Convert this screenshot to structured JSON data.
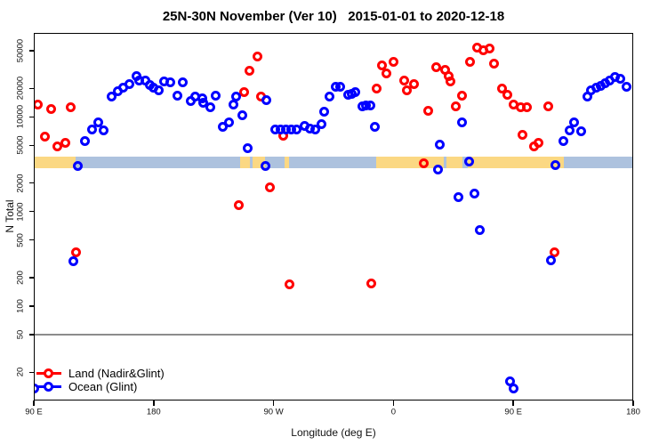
{
  "title": "25N-30N November (Ver 10)   2015-01-01 to 2020-12-18",
  "axes": {
    "xlabel": "Longitude (deg E)",
    "ylabel": "N Total"
  },
  "legend": {
    "items": [
      {
        "label": "Land (Nadir&Glint)",
        "color": "#ff0000"
      },
      {
        "label": "Ocean (Glint)",
        "color": "#0000ff"
      }
    ]
  },
  "chart_data": {
    "type": "scatter",
    "title": "25N-30N November (Ver 10)   2015-01-01 to 2020-12-18",
    "xlabel": "Longitude (deg E)",
    "ylabel": "N Total",
    "x_axis": {
      "range_deg": [
        90,
        540
      ],
      "major_ticks": [
        {
          "deg": 90,
          "label": "90 E"
        },
        {
          "deg": 180,
          "label": "180"
        },
        {
          "deg": 270,
          "label": "90 W"
        },
        {
          "deg": 360,
          "label": "0"
        },
        {
          "deg": 450,
          "label": "90 E"
        },
        {
          "deg": 540,
          "label": "180"
        }
      ]
    },
    "y_axis": {
      "scale": "log",
      "range": [
        10.06,
        78100
      ],
      "ticks": [
        20,
        50,
        100,
        200,
        500,
        1000,
        2000,
        5000,
        10000,
        20000,
        50000
      ]
    },
    "reference_line": {
      "value": 50,
      "color": "#8c8c8c"
    },
    "land_ocean_strip": {
      "n_range": [
        2840,
        3790
      ],
      "ocean_color": "#adc2de",
      "land_color": "#fbd883",
      "span_deg": [
        90,
        540
      ],
      "land_segments_deg": [
        [
          90,
          121.5
        ],
        [
          245,
          252.5
        ],
        [
          254.5,
          263.5
        ],
        [
          278.5,
          281.5
        ],
        [
          347,
          398
        ],
        [
          400,
          412
        ],
        [
          416,
          488
        ]
      ]
    },
    "series": [
      {
        "name": "Land (Nadir&Glint)",
        "color": "#ff0000",
        "marker": "open-circle",
        "points": [
          [
            93.3,
            13400
          ],
          [
            102.7,
            12000
          ],
          [
            117.8,
            12600
          ],
          [
            98.2,
            6260
          ],
          [
            107.4,
            4860
          ],
          [
            113.4,
            5310
          ],
          [
            247.6,
            18100
          ],
          [
            252.2,
            30600
          ],
          [
            257.6,
            43100
          ],
          [
            260.9,
            16400
          ],
          [
            277.6,
            6300
          ],
          [
            347.7,
            19900
          ],
          [
            351.1,
            35400
          ],
          [
            354.9,
            29000
          ],
          [
            360.4,
            38100
          ],
          [
            367.8,
            24200
          ],
          [
            370.4,
            19200
          ],
          [
            375.3,
            22100
          ],
          [
            386.4,
            11700
          ],
          [
            392.4,
            33200
          ],
          [
            398.6,
            31300
          ],
          [
            401.6,
            26900
          ],
          [
            403.1,
            23800
          ],
          [
            406.5,
            12900
          ],
          [
            411.6,
            16600
          ],
          [
            417.6,
            38600
          ],
          [
            422.7,
            53500
          ],
          [
            427.2,
            50900
          ],
          [
            432.0,
            52700
          ],
          [
            435.8,
            36800
          ],
          [
            441.6,
            19900
          ],
          [
            445.4,
            17200
          ],
          [
            450.5,
            13400
          ],
          [
            455.4,
            12600
          ],
          [
            460.5,
            12600
          ],
          [
            476.1,
            12900
          ],
          [
            457.2,
            6500
          ],
          [
            465.4,
            4860
          ],
          [
            469.2,
            5310
          ],
          [
            382.6,
            3250
          ],
          [
            267.4,
            1820
          ],
          [
            244.0,
            1180
          ],
          [
            121.8,
            367
          ],
          [
            480.8,
            372
          ],
          [
            282.1,
            171
          ],
          [
            343.5,
            175
          ]
        ]
      },
      {
        "name": "Ocean (Glint)",
        "color": "#0000ff",
        "marker": "open-circle",
        "points": [
          [
            128.3,
            5500
          ],
          [
            133.6,
            7400
          ],
          [
            138.1,
            8800
          ],
          [
            142.7,
            7240
          ],
          [
            148.3,
            16400
          ],
          [
            153.0,
            18800
          ],
          [
            157.2,
            20300
          ],
          [
            161.6,
            22100
          ],
          [
            167.4,
            27300
          ],
          [
            169.4,
            24500
          ],
          [
            173.5,
            24200
          ],
          [
            176.8,
            21700
          ],
          [
            179.7,
            20300
          ],
          [
            183.5,
            19200
          ],
          [
            187.9,
            23800
          ],
          [
            192.4,
            23300
          ],
          [
            197.5,
            16900
          ],
          [
            202.0,
            23300
          ],
          [
            208.0,
            14700
          ],
          [
            211.3,
            16300
          ],
          [
            216.4,
            15700
          ],
          [
            217.3,
            14200
          ],
          [
            222.4,
            12600
          ],
          [
            226.4,
            16600
          ],
          [
            232.0,
            7780
          ],
          [
            236.4,
            8800
          ],
          [
            239.8,
            13400
          ],
          [
            242.0,
            16300
          ],
          [
            246.4,
            10500
          ],
          [
            250.7,
            4700
          ],
          [
            264.7,
            14900
          ],
          [
            271.6,
            7420
          ],
          [
            275.6,
            7420
          ],
          [
            279.6,
            7420
          ],
          [
            283.6,
            7420
          ],
          [
            287.6,
            7420
          ],
          [
            293.0,
            8050
          ],
          [
            297.0,
            7500
          ],
          [
            301.0,
            7420
          ],
          [
            306.3,
            8300
          ],
          [
            308.3,
            11400
          ],
          [
            311.9,
            16300
          ],
          [
            316.5,
            20900
          ],
          [
            319.7,
            20900
          ],
          [
            325.9,
            17200
          ],
          [
            328.8,
            17600
          ],
          [
            331.5,
            18100
          ],
          [
            336.4,
            12900
          ],
          [
            339.7,
            13200
          ],
          [
            342.6,
            13200
          ],
          [
            345.9,
            7780
          ],
          [
            394.9,
            5050
          ],
          [
            411.6,
            8700
          ],
          [
            487.7,
            5550
          ],
          [
            492.1,
            7240
          ],
          [
            495.9,
            8800
          ],
          [
            501.0,
            7130
          ],
          [
            505.5,
            16400
          ],
          [
            508.4,
            19200
          ],
          [
            512.1,
            20300
          ],
          [
            515.5,
            21400
          ],
          [
            518.8,
            22900
          ],
          [
            522.2,
            24200
          ],
          [
            526.2,
            26500
          ],
          [
            530.6,
            25200
          ],
          [
            535.1,
            20900
          ],
          [
            122.9,
            3030
          ],
          [
            264.0,
            3030
          ],
          [
            393.6,
            2790
          ],
          [
            417.0,
            3370
          ],
          [
            408.5,
            1420
          ],
          [
            420.7,
            1540
          ],
          [
            424.7,
            641
          ],
          [
            481.5,
            3080
          ],
          [
            119.6,
            300
          ],
          [
            478.1,
            304
          ],
          [
            447.4,
            15.9
          ],
          [
            450.0,
            13.4
          ],
          [
            90.3,
            13.4
          ]
        ]
      }
    ]
  }
}
